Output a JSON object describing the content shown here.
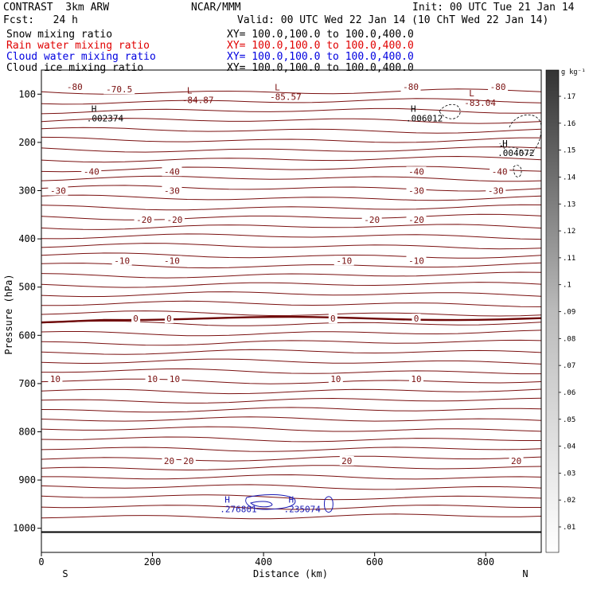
{
  "header": {
    "model": "CONTRAST  3km ARW",
    "org": "NCAR/MMM",
    "init": "Init: 00 UTC Tue 21 Jan 14",
    "fcst": "Fcst:   24 h",
    "valid": "Valid: 00 UTC Wed 22 Jan 14 (10 ChT Wed 22 Jan 14)",
    "fields": [
      {
        "label": "Snow mixing ratio",
        "xy": "XY= 100.0,100.0 to 100.0,400.0",
        "color": "#000000"
      },
      {
        "label": "Rain water mixing ratio",
        "xy": "XY= 100.0,100.0 to 100.0,400.0",
        "color": "#e00000"
      },
      {
        "label": "Cloud water mixing ratio",
        "xy": "XY= 100.0,100.0 to 100.0,400.0",
        "color": "#0000e0"
      },
      {
        "label": "Cloud ice mixing ratio",
        "xy": "XY= 100.0,100.0 to 100.0,400.0",
        "color": "#000000"
      }
    ]
  },
  "colors": {
    "isotherm": "#7a1010",
    "freezing": "#6e0808",
    "cloud_water": "#1a1ab4",
    "axis": "#000000"
  },
  "chart_data": {
    "type": "contour",
    "xlabel": "Distance (km)",
    "ylabel": "Pressure (hPa)",
    "xlim": [
      0,
      900
    ],
    "ylim": [
      1050,
      50
    ],
    "x_ticks": [
      0,
      200,
      400,
      600,
      800
    ],
    "y_ticks": [
      100,
      200,
      300,
      400,
      500,
      600,
      700,
      800,
      900,
      1000
    ],
    "endpoint_labels": {
      "left": "S",
      "right": "N"
    },
    "surface_pressure": 1008,
    "colorbar": {
      "unit": "g kg⁻¹",
      "levels": [
        ".01",
        ".02",
        ".03",
        ".04",
        ".05",
        ".06",
        ".07",
        ".08",
        ".09",
        ".1",
        ".11",
        ".12",
        ".13",
        ".14",
        ".15",
        ".16",
        ".17"
      ]
    },
    "isotherms": [
      {
        "label": "-80",
        "p": 85,
        "label_x": [
          60,
          665,
          822
        ]
      },
      {
        "label": "-70.5",
        "p": 90,
        "label_x": [
          140
        ]
      },
      {
        "label": "-40",
        "p": 260,
        "label_x": [
          90,
          235,
          675,
          825
        ]
      },
      {
        "label": "-30",
        "p": 300,
        "label_x": [
          30,
          235,
          675,
          818
        ]
      },
      {
        "label": "-20",
        "p": 360,
        "label_x": [
          185,
          240,
          595,
          675
        ]
      },
      {
        "label": "-10",
        "p": 445,
        "label_x": [
          145,
          235,
          545,
          675
        ]
      },
      {
        "label": "0",
        "p": 565,
        "label_x": [
          170,
          230,
          525,
          675
        ]
      },
      {
        "label": "10",
        "p": 690,
        "label_x": [
          25,
          200,
          240,
          530,
          675
        ]
      },
      {
        "label": "20",
        "p": 860,
        "label_x": [
          230,
          265,
          550,
          855
        ]
      }
    ],
    "highs_lows": [
      {
        "kind": "L",
        "value": "-84.87",
        "x": 262,
        "p": 112
      },
      {
        "kind": "L",
        "value": "-85.57",
        "x": 420,
        "p": 105
      },
      {
        "kind": "L",
        "value": "-83.04",
        "x": 770,
        "p": 118
      },
      {
        "kind": "H",
        "value": ".002374",
        "x": 90,
        "p": 150
      },
      {
        "kind": "H",
        "value": ".006012",
        "x": 665,
        "p": 150
      },
      {
        "kind": "H",
        "value": ".004072",
        "x": 830,
        "p": 222
      },
      {
        "kind": "H",
        "value": ".276801",
        "x": 330,
        "p": 960
      },
      {
        "kind": "H",
        "value": ".235074",
        "x": 445,
        "p": 960
      }
    ]
  }
}
